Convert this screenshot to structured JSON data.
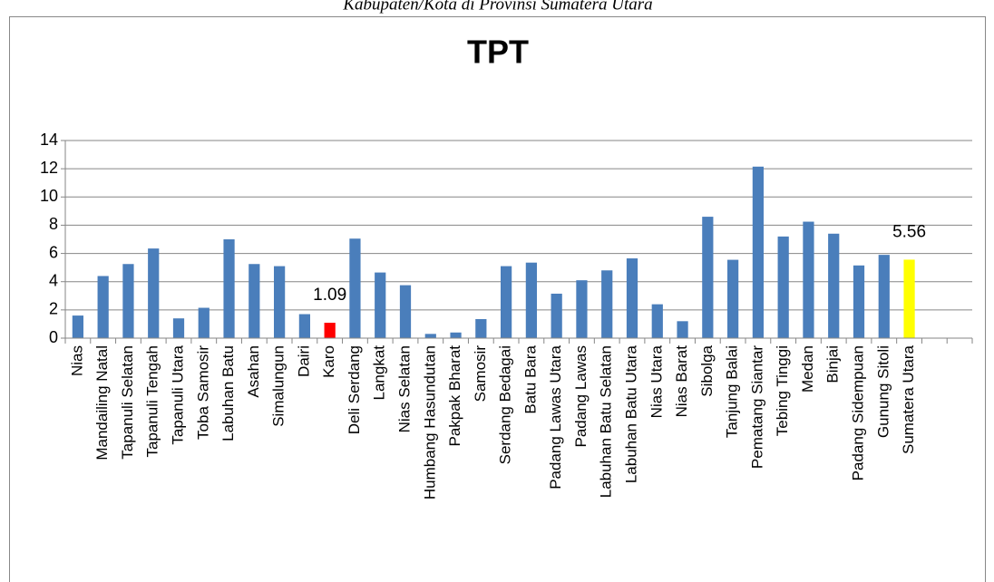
{
  "chart_data": {
    "type": "bar",
    "caption": "Kabupaten/Kota di Provinsi Sumatera Utara",
    "title": "TPT",
    "categories": [
      "Nias",
      "Mandailing Natal",
      "Tapanuli Selatan",
      "Tapanuli Tengah",
      "Tapanuli Utara",
      "Toba Samosir",
      "Labuhan Batu",
      "Asahan",
      "Simalungun",
      "Dairi",
      "Karo",
      "Deli Serdang",
      "Langkat",
      "Nias Selatan",
      "Humbang Hasundutan",
      "Pakpak Bharat",
      "Samosir",
      "Serdang Bedagai",
      "Batu Bara",
      "Padang Lawas Utara",
      "Padang Lawas",
      "Labuhan Batu Selatan",
      "Labuhan Batu Utara",
      "Nias Utara",
      "Nias Barat",
      "Sibolga",
      "Tanjung Balai",
      "Pematang Siantar",
      "Tebing Tinggi",
      "Medan",
      "Binjai",
      "Padang Sidempuan",
      "Gunung Sitoli",
      "Sumatera Utara",
      null,
      null
    ],
    "values": [
      1.6,
      4.4,
      5.25,
      6.35,
      1.4,
      2.15,
      7.0,
      5.25,
      5.1,
      1.7,
      1.09,
      7.05,
      4.65,
      3.75,
      0.3,
      0.4,
      1.35,
      5.1,
      5.35,
      3.15,
      4.1,
      4.8,
      5.65,
      2.4,
      1.2,
      8.6,
      5.55,
      12.15,
      7.2,
      8.25,
      7.4,
      5.15,
      5.9,
      5.56,
      null,
      null
    ],
    "value_labels": [
      null,
      null,
      null,
      null,
      null,
      null,
      null,
      null,
      null,
      null,
      "1.09",
      null,
      null,
      null,
      null,
      null,
      null,
      null,
      null,
      null,
      null,
      null,
      null,
      null,
      null,
      null,
      null,
      null,
      null,
      null,
      null,
      null,
      null,
      "5.56",
      null,
      null
    ],
    "colors": [
      "#4a7ebb",
      "#4a7ebb",
      "#4a7ebb",
      "#4a7ebb",
      "#4a7ebb",
      "#4a7ebb",
      "#4a7ebb",
      "#4a7ebb",
      "#4a7ebb",
      "#4a7ebb",
      "#ff0000",
      "#4a7ebb",
      "#4a7ebb",
      "#4a7ebb",
      "#4a7ebb",
      "#4a7ebb",
      "#4a7ebb",
      "#4a7ebb",
      "#4a7ebb",
      "#4a7ebb",
      "#4a7ebb",
      "#4a7ebb",
      "#4a7ebb",
      "#4a7ebb",
      "#4a7ebb",
      "#4a7ebb",
      "#4a7ebb",
      "#4a7ebb",
      "#4a7ebb",
      "#4a7ebb",
      "#4a7ebb",
      "#4a7ebb",
      "#4a7ebb",
      "#ffff00",
      null,
      null
    ],
    "ylim": [
      0,
      14
    ],
    "yticks": [
      0,
      2,
      4,
      6,
      8,
      10,
      12,
      14
    ],
    "grid": true
  }
}
